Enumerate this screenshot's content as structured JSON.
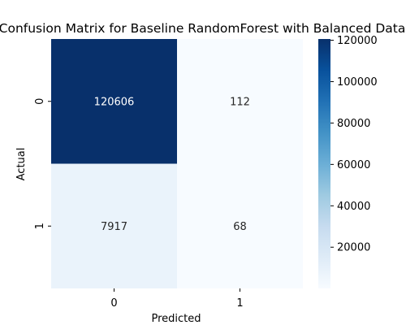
{
  "chart_data": {
    "type": "heatmap",
    "title": "Confusion Matrix for Baseline RandomForest with Balanced Data",
    "xlabel": "Predicted",
    "ylabel": "Actual",
    "x_categories": [
      "0",
      "1"
    ],
    "y_categories": [
      "0",
      "1"
    ],
    "values": [
      [
        120606,
        112
      ],
      [
        7917,
        68
      ]
    ],
    "colormap": "Blues",
    "colorbar": {
      "range": [
        68,
        120606
      ],
      "ticks": [
        20000,
        40000,
        60000,
        80000,
        100000,
        120000
      ],
      "tick_labels": [
        "20000",
        "40000",
        "60000",
        "80000",
        "100000",
        "120000"
      ]
    },
    "grid": false,
    "legend": "colorbar-right"
  }
}
